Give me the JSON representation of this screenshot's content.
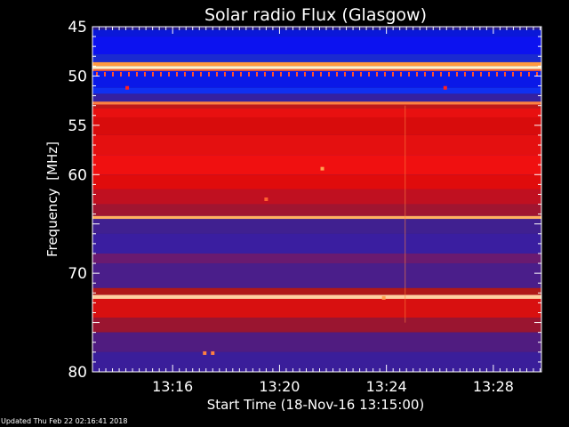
{
  "chart_data": {
    "type": "heatmap",
    "title": "Solar radio Flux (Glasgow)",
    "ylabel_text": "Frequency",
    "ylabel_unit": "[MHz]",
    "xlabel": "Start Time (18-Nov-16 13:15:00)",
    "footer": "Updated Thu Feb 22 02:16:41 2018",
    "ylim": [
      45,
      80
    ],
    "y_inverted": true,
    "y_ticks": [
      45,
      50,
      55,
      60,
      70,
      80
    ],
    "x_range_minutes": [
      13.0,
      29.8
    ],
    "x_ticks": [
      {
        "minute": 16,
        "label": "13:16"
      },
      {
        "minute": 20,
        "label": "13:20"
      },
      {
        "minute": 24,
        "label": "13:24"
      },
      {
        "minute": 28,
        "label": "13:28"
      }
    ],
    "bands": [
      {
        "from": 45.0,
        "to": 45.3,
        "color": "#2d1e8a"
      },
      {
        "from": 45.3,
        "to": 46.0,
        "color": "#0a18d8"
      },
      {
        "from": 46.0,
        "to": 47.8,
        "color": "#0c12f0"
      },
      {
        "from": 47.8,
        "to": 48.6,
        "color": "#1a2ad0"
      },
      {
        "from": 48.6,
        "to": 49.0,
        "color": "#ff9a40"
      },
      {
        "from": 49.0,
        "to": 49.3,
        "color": "#fff2c8"
      },
      {
        "from": 49.3,
        "to": 49.5,
        "color": "#ff6030"
      },
      {
        "from": 49.5,
        "to": 51.2,
        "color": "#0a18e8"
      },
      {
        "from": 51.2,
        "to": 51.8,
        "color": "#1030f0"
      },
      {
        "from": 51.8,
        "to": 52.6,
        "color": "#3520a0"
      },
      {
        "from": 52.6,
        "to": 52.9,
        "color": "#ff8040"
      },
      {
        "from": 52.9,
        "to": 53.3,
        "color": "#c01818"
      },
      {
        "from": 53.3,
        "to": 54.2,
        "color": "#e81010"
      },
      {
        "from": 54.2,
        "to": 56.0,
        "color": "#d80c0c"
      },
      {
        "from": 56.0,
        "to": 58.0,
        "color": "#e41010"
      },
      {
        "from": 58.0,
        "to": 60.0,
        "color": "#f01010"
      },
      {
        "from": 60.0,
        "to": 61.5,
        "color": "#e00c0c"
      },
      {
        "from": 61.5,
        "to": 63.0,
        "color": "#c01020"
      },
      {
        "from": 63.0,
        "to": 64.2,
        "color": "#a01530"
      },
      {
        "from": 64.2,
        "to": 64.5,
        "color": "#ffb060"
      },
      {
        "from": 64.5,
        "to": 66.0,
        "color": "#402090"
      },
      {
        "from": 66.0,
        "to": 68.0,
        "color": "#3a1ea0"
      },
      {
        "from": 68.0,
        "to": 69.0,
        "color": "#6a1a70"
      },
      {
        "from": 69.0,
        "to": 71.5,
        "color": "#4a1e8a"
      },
      {
        "from": 71.5,
        "to": 72.2,
        "color": "#b01818"
      },
      {
        "from": 72.2,
        "to": 72.6,
        "color": "#ffd0a0"
      },
      {
        "from": 72.6,
        "to": 74.5,
        "color": "#d81010"
      },
      {
        "from": 74.5,
        "to": 76.0,
        "color": "#9a1530"
      },
      {
        "from": 76.0,
        "to": 78.0,
        "color": "#501c80"
      },
      {
        "from": 78.0,
        "to": 80.0,
        "color": "#3a1e9a"
      }
    ],
    "spots": [
      {
        "minute": 14.3,
        "mhz": 51.2,
        "color": "#ff2020"
      },
      {
        "minute": 26.2,
        "mhz": 51.2,
        "color": "#ff2020"
      },
      {
        "minute": 21.6,
        "mhz": 59.4,
        "color": "#ffa050"
      },
      {
        "minute": 19.5,
        "mhz": 62.5,
        "color": "#ff6030"
      },
      {
        "minute": 17.2,
        "mhz": 78.1,
        "color": "#ff8040"
      },
      {
        "minute": 17.5,
        "mhz": 78.1,
        "color": "#ff8040"
      },
      {
        "minute": 23.9,
        "mhz": 72.5,
        "color": "#ffa050"
      }
    ]
  }
}
